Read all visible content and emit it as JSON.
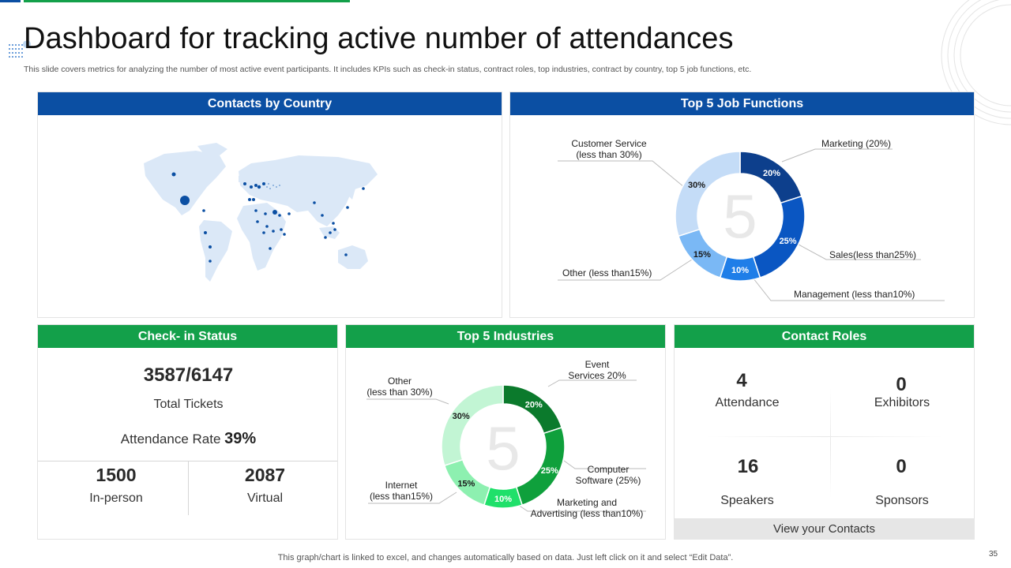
{
  "title": "Dashboard for tracking active number of attendances",
  "subtitle": "This slide covers metrics for analyzing the number of most active event participants. It includes KPIs such as check-in status, contract roles, top industries, contract by country, top 5 job functions, etc.",
  "panels": {
    "country": {
      "title": "Contacts by Country"
    },
    "jobs": {
      "title": "Top 5 Job Functions",
      "center_text": "5",
      "labels": {
        "customer": "Customer Service\n(less than 30%)",
        "marketing": "Marketing (20%)",
        "sales": "Sales(less than25%)",
        "management": "Management (less than10%)",
        "other": "Other (less than15%)"
      }
    },
    "checkin": {
      "title": "Check- in Status",
      "tickets": "3587/6147",
      "tickets_label": "Total Tickets",
      "rate_label": "Attendance Rate",
      "rate_value": "39%",
      "inperson_value": "1500",
      "inperson_label": "In-person",
      "virtual_value": "2087",
      "virtual_label": "Virtual"
    },
    "industries": {
      "title": "Top 5 Industries",
      "center_text": "5",
      "labels": {
        "event": "Event\nServices 20%",
        "software": "Computer\nSoftware (25%)",
        "marketing": "Marketing and\nAdvertising (less than10%)",
        "internet": "Internet\n(less than15%)",
        "other": "Other\n(less than 30%)"
      }
    },
    "roles": {
      "title": "Contact Roles",
      "items": [
        {
          "value": "4",
          "label": "Attendance"
        },
        {
          "value": "0",
          "label": "Exhibitors"
        },
        {
          "value": "16",
          "label": "Speakers"
        },
        {
          "value": "0",
          "label": "Sponsors"
        }
      ],
      "button": "View your Contacts"
    }
  },
  "chart_data": [
    {
      "type": "pie",
      "title": "Top 5 Job Functions",
      "categories": [
        "Marketing",
        "Sales",
        "Management",
        "Other",
        "Customer Service"
      ],
      "values": [
        20,
        25,
        10,
        15,
        30
      ],
      "value_labels": [
        "20%",
        "25%",
        "10%",
        "15%",
        "30%"
      ],
      "colors": [
        "#0d3f8c",
        "#0a56c2",
        "#1f7ee8",
        "#7ab8f5",
        "#c4dcf7"
      ]
    },
    {
      "type": "pie",
      "title": "Top 5 Industries",
      "categories": [
        "Event Services",
        "Computer Software",
        "Marketing and Advertising",
        "Internet",
        "Other"
      ],
      "values": [
        20,
        25,
        10,
        15,
        30
      ],
      "value_labels": [
        "20%",
        "25%",
        "10%",
        "15%",
        "30%"
      ],
      "colors": [
        "#0b7a2c",
        "#0fa03c",
        "#1fe06a",
        "#8df0b0",
        "#c2f5d4"
      ]
    }
  ],
  "footer": "This graph/chart is linked to excel,  and changes automatically based on data. Just left click on it and select “Edit Data”.",
  "page_number": "35"
}
